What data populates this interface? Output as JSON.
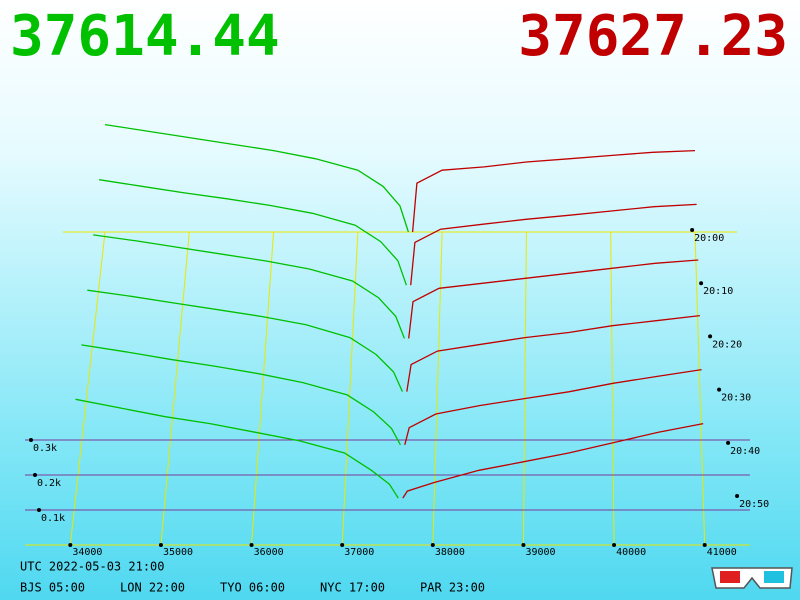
{
  "bid_price": 37614.44,
  "ask_price": 37627.23,
  "footer": {
    "utc": "UTC 2022-05-03 21:00",
    "bjs": "BJS 05:00",
    "lon": "LON 22:00",
    "tyo": "TYO 06:00",
    "nyc": "NYC 17:00",
    "par": "PAR 23:00"
  },
  "chart_data": {
    "type": "depth3d",
    "xlim": [
      33500,
      41500
    ],
    "xticks": [
      34000,
      35000,
      36000,
      37000,
      38000,
      39000,
      40000,
      41000
    ],
    "yticks": [
      {
        "value": 100,
        "label": "0.1k"
      },
      {
        "value": 200,
        "label": "0.2k"
      },
      {
        "value": 300,
        "label": "0.3k"
      }
    ],
    "times": [
      "20:00",
      "20:10",
      "20:20",
      "20:30",
      "20:40",
      "20:50"
    ],
    "bid_color": "#00c000",
    "ask_color": "#c00000",
    "bid_x": [
      34000,
      34500,
      35000,
      35500,
      36000,
      36500,
      37000,
      37300,
      37500,
      37600
    ],
    "ask_x": [
      37650,
      37700,
      38000,
      38500,
      39000,
      39500,
      40000,
      40500,
      41000
    ],
    "bids": [
      [
        330,
        310,
        290,
        270,
        250,
        225,
        190,
        140,
        80,
        0
      ],
      [
        320,
        300,
        280,
        262,
        242,
        218,
        182,
        132,
        74,
        0
      ],
      [
        310,
        292,
        272,
        252,
        232,
        208,
        172,
        122,
        66,
        0
      ],
      [
        300,
        282,
        262,
        242,
        222,
        198,
        160,
        110,
        58,
        0
      ],
      [
        292,
        272,
        250,
        230,
        208,
        182,
        146,
        96,
        48,
        0
      ],
      [
        285,
        260,
        235,
        215,
        190,
        165,
        130,
        80,
        40,
        0
      ]
    ],
    "asks": [
      [
        0,
        150,
        190,
        200,
        215,
        225,
        235,
        245,
        250
      ],
      [
        0,
        130,
        170,
        185,
        200,
        212,
        225,
        238,
        245
      ],
      [
        0,
        110,
        150,
        165,
        180,
        195,
        210,
        225,
        235
      ],
      [
        0,
        80,
        120,
        140,
        160,
        175,
        195,
        210,
        225
      ],
      [
        0,
        50,
        90,
        115,
        135,
        155,
        180,
        200,
        220
      ],
      [
        0,
        20,
        45,
        80,
        105,
        130,
        160,
        190,
        215
      ]
    ]
  }
}
